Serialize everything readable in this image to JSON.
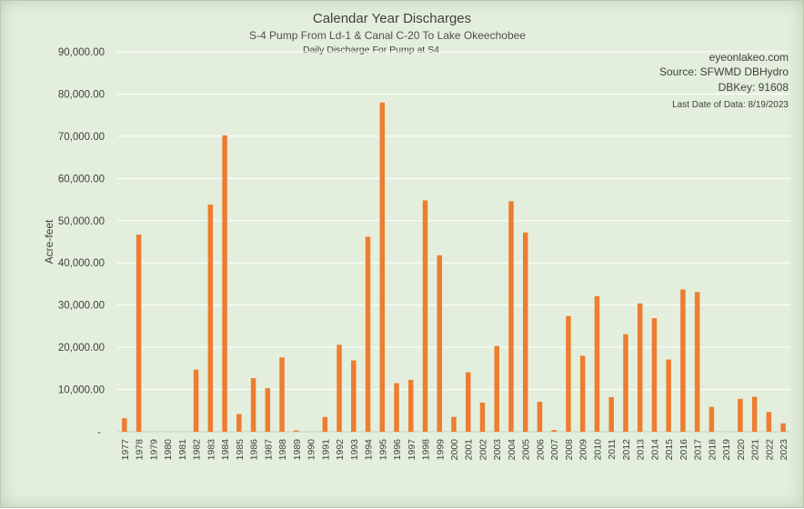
{
  "chart_data": {
    "type": "bar",
    "title": "Calendar Year Discharges",
    "subtitle": "S-4 Pump From Ld-1 & Canal C-20 To Lake Okeechobee",
    "subtitle2": "Daily Discharge For Pump at S4",
    "ylabel": "Acre-feet",
    "xlabel": "",
    "ylim": [
      0,
      90000
    ],
    "yticks": [
      "-",
      "10,000.00",
      "20,000.00",
      "30,000.00",
      "40,000.00",
      "50,000.00",
      "60,000.00",
      "70,000.00",
      "80,000.00",
      "90,000.00"
    ],
    "grid": true,
    "bar_color": "#ed7d31",
    "categories": [
      "1977",
      "1978",
      "1979",
      "1980",
      "1981",
      "1982",
      "1983",
      "1984",
      "1985",
      "1986",
      "1987",
      "1988",
      "1989",
      "1990",
      "1991",
      "1992",
      "1993",
      "1994",
      "1995",
      "1996",
      "1997",
      "1998",
      "1999",
      "2000",
      "2001",
      "2002",
      "2003",
      "2004",
      "2005",
      "2006",
      "2007",
      "2008",
      "2009",
      "2010",
      "2011",
      "2012",
      "2013",
      "2014",
      "2015",
      "2016",
      "2017",
      "2018",
      "2019",
      "2020",
      "2021",
      "2022",
      "2023"
    ],
    "values": [
      3200,
      46700,
      0,
      0,
      0,
      14700,
      53800,
      70200,
      4200,
      12700,
      10300,
      17600,
      300,
      0,
      3500,
      20600,
      16900,
      46200,
      78000,
      11500,
      12300,
      54800,
      41800,
      3500,
      14100,
      6900,
      20300,
      54600,
      47200,
      7100,
      400,
      27400,
      18000,
      32100,
      8200,
      23100,
      30400,
      26900,
      17100,
      33700,
      33100,
      5900,
      0,
      7800,
      8300,
      4700,
      2000
    ],
    "annotations": [
      "eyeonlakeo.com",
      "Source: SFWMD DBHydro",
      "DBKey: 91608",
      "Last Date of Data: 8/19/2023"
    ]
  }
}
